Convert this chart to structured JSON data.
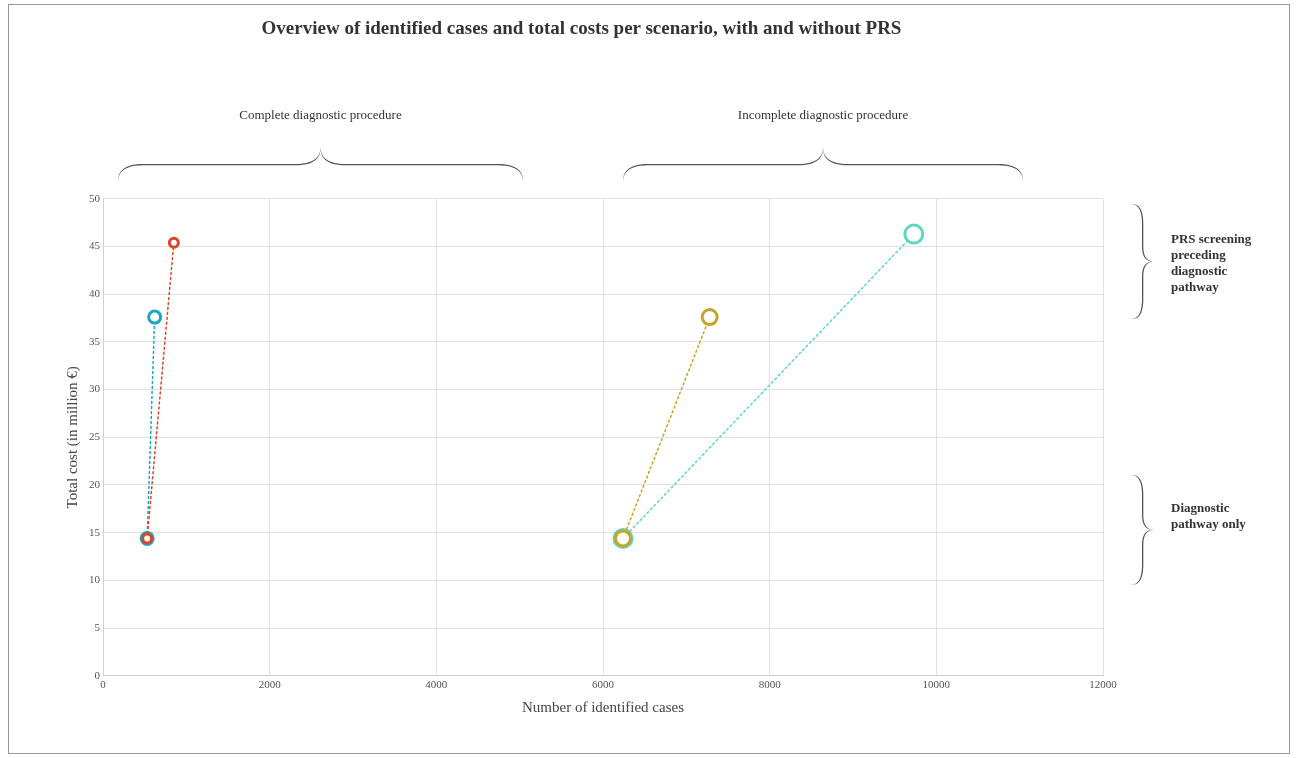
{
  "chart_data": {
    "type": "line",
    "title": "Overview of identified cases and total costs per scenario, with and without PRS",
    "xlabel": "Number of identified cases",
    "ylabel": "Total cost (in million €)",
    "series": [
      {
        "color": "#d9472b",
        "x": [
          530,
          850
        ],
        "values": [
          14.4,
          45.4
        ]
      },
      {
        "color": "#1aa7c0",
        "x": [
          530,
          620
        ],
        "values": [
          14.4,
          37.6
        ]
      },
      {
        "color": "#c9a227",
        "x": [
          6240,
          7280
        ],
        "values": [
          14.4,
          37.6
        ]
      },
      {
        "color": "#5dd6c4",
        "x": [
          6240,
          9730
        ],
        "values": [
          14.4,
          46.3
        ]
      }
    ],
    "xlim": [
      0,
      12000
    ],
    "xticks": [
      0,
      2000,
      4000,
      6000,
      8000,
      10000,
      12000
    ],
    "ylim": [
      0,
      50
    ],
    "yticks": [
      0,
      5,
      10,
      15,
      20,
      25,
      30,
      35,
      40,
      45,
      50
    ],
    "grid": true,
    "legend": false,
    "marker": "circle",
    "line_style": "dotted",
    "annotations": [
      "Complete diagnostic procedure",
      "Incomplete diagnostic procedure",
      "PRS screening preceding diagnostic pathway",
      "Diagnostic pathway only"
    ]
  }
}
